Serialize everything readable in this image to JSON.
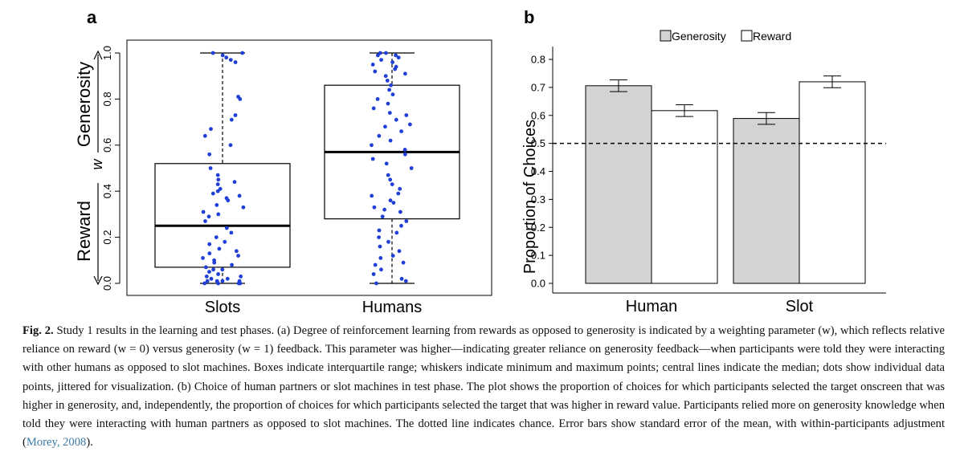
{
  "panel_a": {
    "label": "a",
    "y_title_top": "Generosity",
    "y_title_mid": "w",
    "y_title_bottom": "Reward",
    "y_ticks": [
      "0.0",
      "0.2",
      "0.4",
      "0.6",
      "0.8",
      "1.0"
    ],
    "colors": {
      "dots": "#1f3fd6",
      "box_line": "#000000"
    }
  },
  "panel_b": {
    "label": "b",
    "colors": {
      "generosity": "#d3d3d3",
      "reward": "#ffffff",
      "chance_line": "#000000"
    }
  },
  "chart_data": [
    {
      "type": "box",
      "title": "",
      "xlabel": "",
      "ylabel": "w",
      "ylim": [
        0,
        1
      ],
      "categories": [
        "Slots",
        "Humans"
      ],
      "boxes": [
        {
          "name": "Slots",
          "min": 0.0,
          "q1": 0.07,
          "median": 0.25,
          "q3": 0.52,
          "max": 1.0
        },
        {
          "name": "Humans",
          "min": 0.0,
          "q1": 0.28,
          "median": 0.57,
          "q3": 0.86,
          "max": 1.0
        }
      ],
      "points": {
        "Slots": [
          0.0,
          0.0,
          0.0,
          0.0,
          0.01,
          0.01,
          0.01,
          0.01,
          0.02,
          0.02,
          0.03,
          0.03,
          0.04,
          0.05,
          0.06,
          0.06,
          0.07,
          0.08,
          0.09,
          0.1,
          0.11,
          0.12,
          0.13,
          0.14,
          0.15,
          0.17,
          0.18,
          0.2,
          0.22,
          0.24,
          0.27,
          0.29,
          0.3,
          0.31,
          0.33,
          0.34,
          0.36,
          0.37,
          0.38,
          0.39,
          0.4,
          0.41,
          0.43,
          0.44,
          0.45,
          0.47,
          0.5,
          0.56,
          0.6,
          0.64,
          0.67,
          0.71,
          0.73,
          0.8,
          0.81,
          0.96,
          0.97,
          0.98,
          0.99,
          1.0,
          1.0
        ],
        "Humans": [
          0.0,
          0.01,
          0.02,
          0.04,
          0.06,
          0.08,
          0.09,
          0.11,
          0.12,
          0.14,
          0.16,
          0.18,
          0.2,
          0.22,
          0.23,
          0.25,
          0.27,
          0.29,
          0.31,
          0.32,
          0.33,
          0.35,
          0.36,
          0.38,
          0.39,
          0.41,
          0.43,
          0.45,
          0.47,
          0.5,
          0.52,
          0.54,
          0.56,
          0.58,
          0.6,
          0.62,
          0.64,
          0.66,
          0.68,
          0.69,
          0.71,
          0.73,
          0.74,
          0.76,
          0.78,
          0.8,
          0.82,
          0.84,
          0.86,
          0.88,
          0.9,
          0.91,
          0.92,
          0.93,
          0.94,
          0.95,
          0.96,
          0.97,
          0.98,
          0.99,
          0.99,
          1.0,
          1.0
        ]
      }
    },
    {
      "type": "bar",
      "title": "",
      "xlabel": "",
      "ylabel": "Proportion of Choices",
      "ylim": [
        0,
        0.85
      ],
      "y_ticks": [
        "0.0",
        "0.1",
        "0.2",
        "0.3",
        "0.4",
        "0.5",
        "0.6",
        "0.7",
        "0.8"
      ],
      "categories": [
        "Human",
        "Slot"
      ],
      "series": [
        {
          "name": "Generosity",
          "values": [
            0.706,
            0.589
          ],
          "errors": [
            0.021,
            0.021
          ]
        },
        {
          "name": "Reward",
          "values": [
            0.617,
            0.72
          ],
          "errors": [
            0.021,
            0.021
          ]
        }
      ],
      "reference_line": {
        "y": 0.5,
        "style": "dashed"
      },
      "legend": "top"
    }
  ],
  "caption": {
    "fig_label": "Fig. 2.",
    "text": " Study 1 results in the learning and test phases. (a) Degree of reinforcement learning from rewards as opposed to generosity is indicated by a weighting parameter (w), which reflects relative reliance on reward (w = 0) versus generosity (w = 1) feedback. This parameter was higher—indicating greater reliance on generosity feedback—when participants were told they were interacting with other humans as opposed to slot machines. Boxes indicate interquartile range; whiskers indicate minimum and maximum points; central lines indicate the median; dots show individual data points, jittered for visualization. (b) Choice of human partners or slot machines in test phase. The plot shows the proportion of choices for which participants selected the target onscreen that was higher in generosity, and, independently, the proportion of choices for which participants selected the target that was higher in reward value. Participants relied more on generosity knowledge when told they were interacting with human partners as opposed to slot machines. The dotted line indicates chance. Error bars show standard error of the mean, with within-participants adjustment (",
    "citation": "Morey, 2008",
    "tail": ")."
  }
}
